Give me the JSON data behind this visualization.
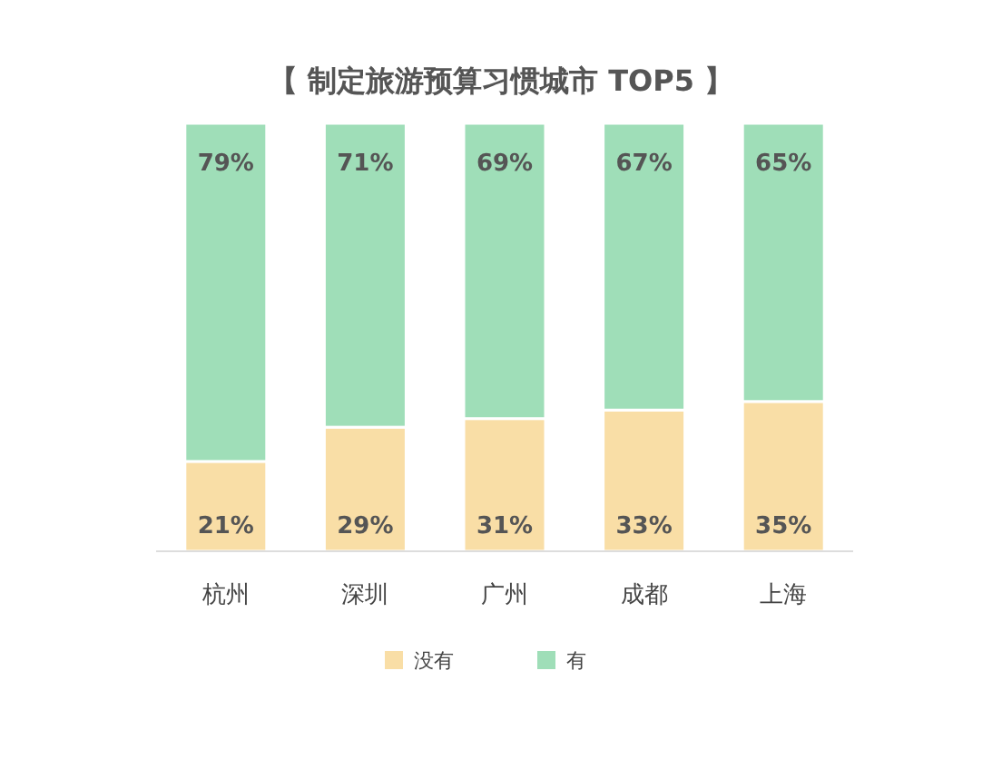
{
  "chart_data": {
    "type": "bar",
    "title": "【 制定旅游预算习惯城市 TOP5 】",
    "stacked": true,
    "legend": "bottom",
    "categories": [
      "杭州",
      "深圳",
      "广州",
      "成都",
      "上海"
    ],
    "series": [
      {
        "name": "没有",
        "color": "#f9dea6",
        "values": [
          21,
          29,
          31,
          33,
          35
        ],
        "value_labels": [
          "21%",
          "29%",
          "31%",
          "33%",
          "35%"
        ]
      },
      {
        "name": "有",
        "color": "#9fdeb8",
        "values": [
          79,
          71,
          69,
          67,
          65
        ],
        "value_labels": [
          "79%",
          "71%",
          "69%",
          "67%",
          "65%"
        ]
      }
    ]
  }
}
